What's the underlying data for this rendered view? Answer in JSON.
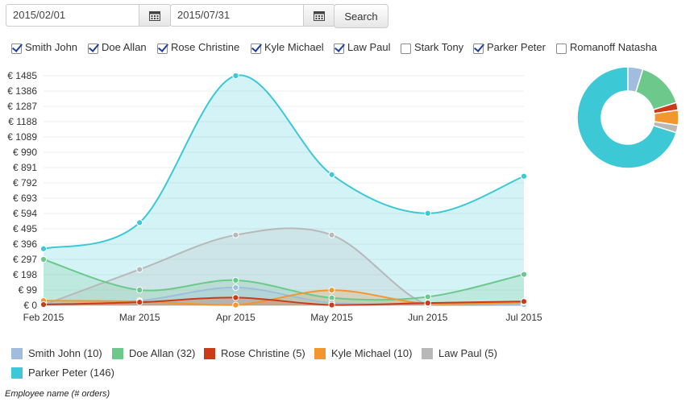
{
  "filters": {
    "start_date": "2015/02/01",
    "end_date": "2015/07/31",
    "search_label": "Search",
    "calendar_icon": "calendar-icon"
  },
  "employees": [
    {
      "label": "Smith John",
      "checked": true
    },
    {
      "label": "Doe Allan",
      "checked": true
    },
    {
      "label": "Rose Christine",
      "checked": true
    },
    {
      "label": "Kyle Michael",
      "checked": true
    },
    {
      "label": "Law Paul",
      "checked": true
    },
    {
      "label": "Stark Tony",
      "checked": false
    },
    {
      "label": "Parker Peter",
      "checked": true
    },
    {
      "label": "Romanoff Natasha",
      "checked": false
    }
  ],
  "chart_data": [
    {
      "type": "area",
      "categories": [
        "Feb 2015",
        "Mar 2015",
        "Apr 2015",
        "May 2015",
        "Jun 2015",
        "Jul 2015"
      ],
      "yticks": [
        "€ 0",
        "€ 99",
        "€ 198",
        "€ 297",
        "€ 396",
        "€ 495",
        "€ 594",
        "€ 693",
        "€ 792",
        "€ 891",
        "€ 990",
        "€ 1089",
        "€ 1188",
        "€ 1287",
        "€ 1386",
        "€ 1485"
      ],
      "ylim": [
        0,
        1485
      ],
      "grid": true,
      "legend_position": "bottom",
      "legend_caption": "Employee name (# orders)",
      "series": [
        {
          "name": "Smith John",
          "legend": "Smith John (10)",
          "color": "#a0bcdf",
          "values": [
            10,
            30,
            115,
            15,
            10,
            5
          ]
        },
        {
          "name": "Doe Allan",
          "legend": "Doe Allan (32)",
          "color": "#6cc98b",
          "values": [
            297,
            99,
            162,
            48,
            55,
            200
          ]
        },
        {
          "name": "Rose Christine",
          "legend": "Rose Christine (5)",
          "color": "#cc3a1a",
          "values": [
            5,
            20,
            50,
            2,
            15,
            25
          ]
        },
        {
          "name": "Kyle Michael",
          "legend": "Kyle Michael (10)",
          "color": "#f2962e",
          "values": [
            30,
            25,
            2,
            98,
            10,
            20
          ]
        },
        {
          "name": "Law Paul",
          "legend": "Law Paul (5)",
          "color": "#b8b8b8",
          "values": [
            2,
            232,
            455,
            455,
            2,
            2
          ]
        },
        {
          "name": "Parker Peter",
          "legend": "Parker Peter (146)",
          "color": "#3cc8d5",
          "values": [
            366,
            535,
            1485,
            845,
            595,
            835
          ]
        }
      ]
    },
    {
      "type": "pie",
      "donut": true,
      "slices": [
        {
          "name": "Smith John",
          "value": 10,
          "color": "#a0bcdf"
        },
        {
          "name": "Doe Allan",
          "value": 32,
          "color": "#6cc98b"
        },
        {
          "name": "Rose Christine",
          "value": 5,
          "color": "#cc3a1a"
        },
        {
          "name": "Kyle Michael",
          "value": 10,
          "color": "#f2962e"
        },
        {
          "name": "Law Paul",
          "value": 5,
          "color": "#b8b8b8"
        },
        {
          "name": "Parker Peter",
          "value": 146,
          "color": "#3cc8d5"
        }
      ]
    }
  ]
}
